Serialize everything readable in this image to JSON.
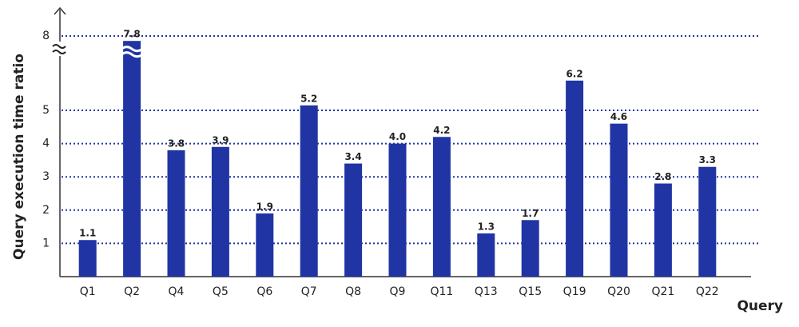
{
  "chart_data": {
    "type": "bar",
    "x_label": "Query",
    "y_label": "Query execution time ratio",
    "categories": [
      "Q1",
      "Q2",
      "Q4",
      "Q5",
      "Q6",
      "Q7",
      "Q8",
      "Q9",
      "Q11",
      "Q13",
      "Q15",
      "Q19",
      "Q20",
      "Q21",
      "Q22"
    ],
    "values": [
      1.1,
      7.8,
      3.8,
      3.9,
      1.9,
      5.2,
      3.4,
      4.0,
      4.2,
      1.3,
      1.7,
      6.2,
      4.6,
      2.8,
      3.3
    ],
    "value_labels": [
      "1.1",
      "7.8",
      "3.8",
      "3.9",
      "1.9",
      "5.2",
      "3.4",
      "4.0",
      "4.2",
      "1.3",
      "1.7",
      "6.2",
      "4.6",
      "2.8",
      "3.3"
    ],
    "color": "#2134a3",
    "ylim": [
      0,
      8
    ],
    "yticks": [
      1,
      2,
      3,
      4,
      5,
      8
    ],
    "grid": true,
    "axis_break": true
  }
}
